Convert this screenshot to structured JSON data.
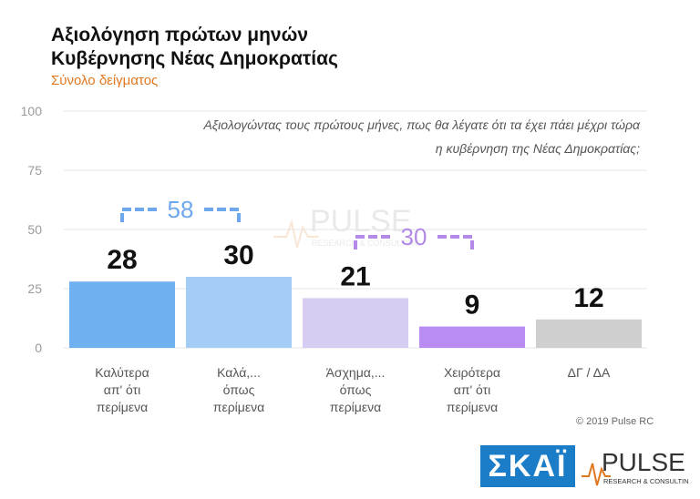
{
  "header": {
    "title_line1": "Αξιολόγηση πρώτων μηνών",
    "title_line2": "Κυβέρνησης Νέας Δημοκρατίας",
    "subtitle": "Σύνολο δείγματος"
  },
  "question": {
    "line1": "Αξιολογώντας τους πρώτους μήνες, πως θα λέγατε ότι τα έχει πάει μέχρι τώρα",
    "line2": "η κυβέρνηση της Νέας Δημοκρατίας;"
  },
  "chart_data": {
    "type": "bar",
    "categories": [
      [
        "Καλύτερα",
        "απ' ότι",
        "περίμενα"
      ],
      [
        "Καλά,...",
        "όπως",
        "περίμενα"
      ],
      [
        "Άσχημα,...",
        "όπως",
        "περίμενα"
      ],
      [
        "Χειρότερα",
        "απ' ότι",
        "περίμενα"
      ],
      [
        "ΔΓ / ΔΑ"
      ]
    ],
    "values": [
      28,
      30,
      21,
      9,
      12
    ],
    "colors": [
      "#6eb0f0",
      "#a3cdf5",
      "#d7cdf3",
      "#b88cf2",
      "#cfcfcf"
    ],
    "ylim": [
      0,
      100
    ],
    "yticks": [
      0,
      25,
      50,
      75,
      100
    ],
    "brackets": [
      {
        "label": "58",
        "from": 0,
        "to": 1,
        "color": "#6ea8ec"
      },
      {
        "label": "30",
        "from": 2,
        "to": 3,
        "color": "#b48ae9"
      }
    ]
  },
  "watermark": {
    "brand": "PULSE",
    "tagline": "RESEARCH & CONSULTING"
  },
  "footer": {
    "copyright": "© 2019 Pulse RC",
    "skai_logo": "ΣΚΑΪ",
    "pulse_logo": "PULSE",
    "pulse_tagline": "RESEARCH & CONSULTING"
  }
}
